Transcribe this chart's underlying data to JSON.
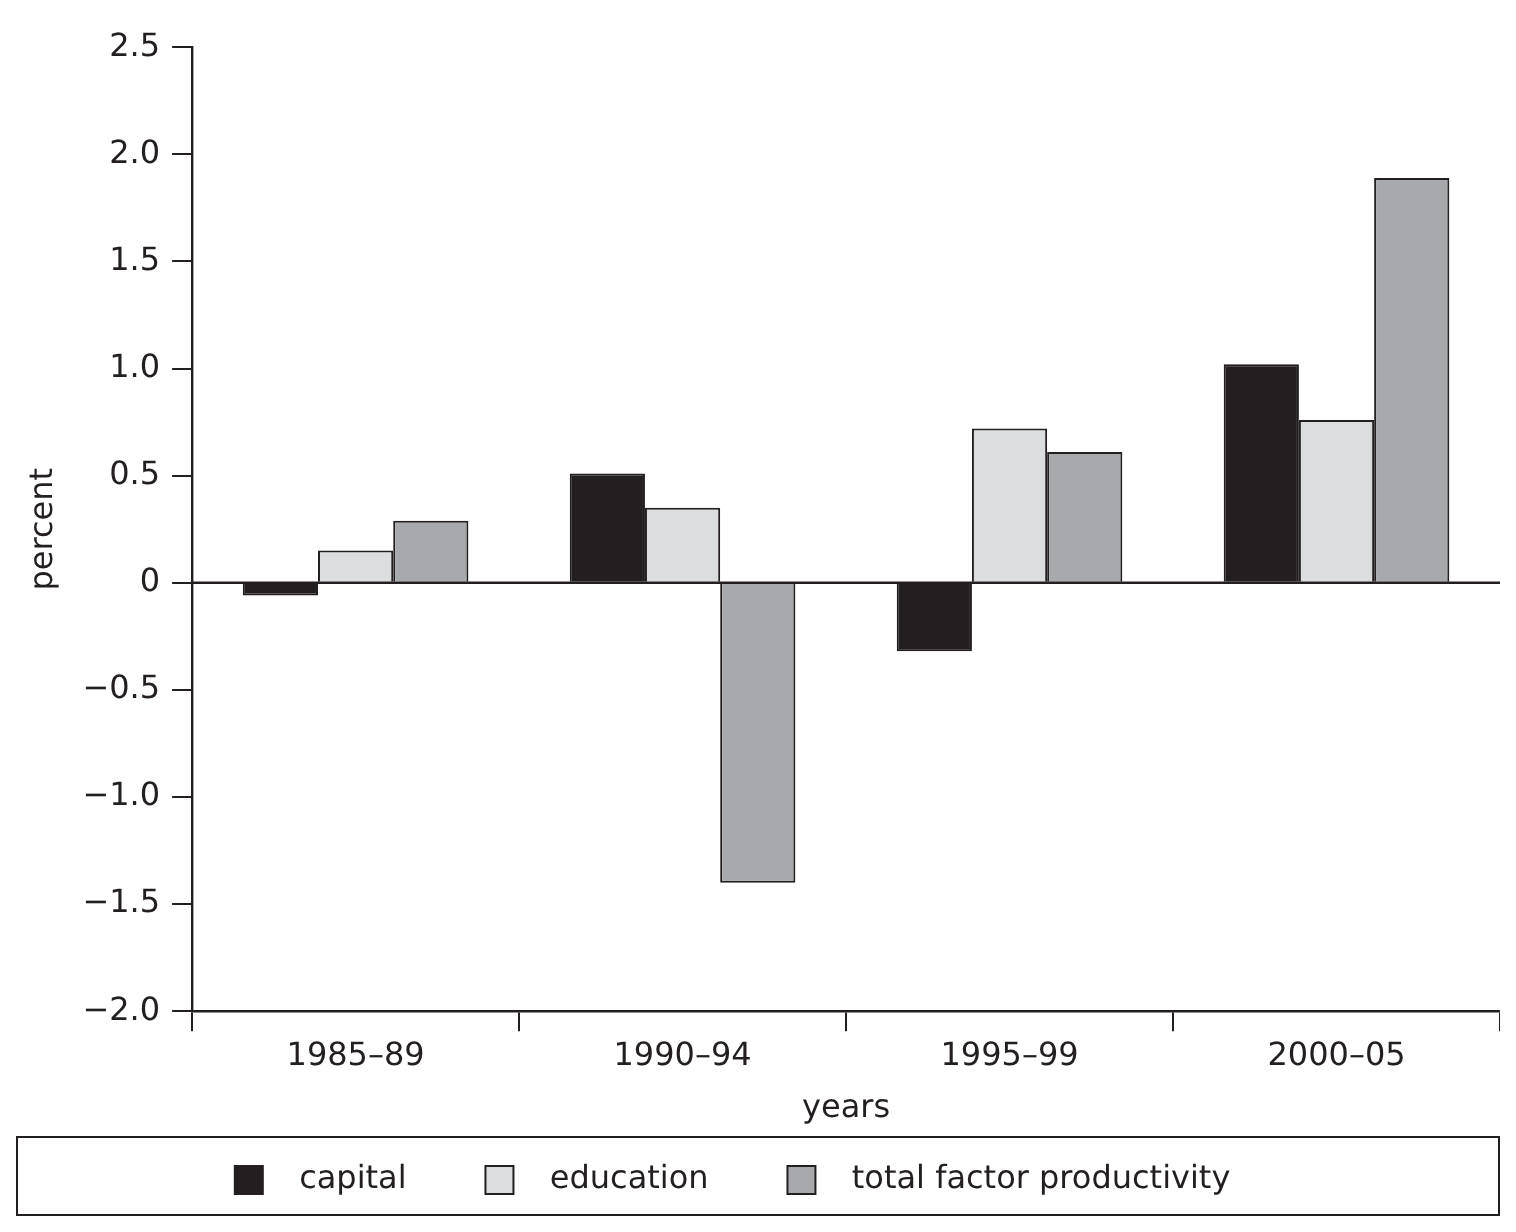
{
  "chart_data": {
    "type": "bar",
    "xlabel": "years",
    "ylabel": "percent",
    "categories": [
      "1985–89",
      "1990–94",
      "1995–99",
      "2000–05"
    ],
    "series": [
      {
        "name": "capital",
        "color": "#231f20",
        "values": [
          -0.06,
          0.51,
          -0.32,
          1.02
        ]
      },
      {
        "name": "education",
        "color": "#dcddde",
        "values": [
          0.15,
          0.35,
          0.72,
          0.76
        ]
      },
      {
        "name": "total factor productivity",
        "color": "#a7a9ac",
        "values": [
          0.29,
          -1.4,
          0.61,
          1.89
        ]
      }
    ],
    "ylim": [
      -2.0,
      2.5
    ],
    "yticks": [
      {
        "value": -2,
        "label": "−2.0"
      },
      {
        "value": -1.5,
        "label": "−1.5"
      },
      {
        "value": -1,
        "label": "−1.0"
      },
      {
        "value": -0.5,
        "label": "−0.5"
      },
      0,
      {
        "value": 0.5,
        "label": "0.5"
      },
      {
        "value": 1,
        "label": "1.0"
      },
      {
        "value": 1.5,
        "label": "1.5"
      },
      {
        "value": 2,
        "label": "2.0"
      },
      {
        "value": 2.5,
        "label": "2.5"
      }
    ],
    "ref_lines": [
      {
        "axis": "y",
        "value": 0,
        "color": "#231f20"
      }
    ],
    "grid": false,
    "legend": "bottom"
  }
}
